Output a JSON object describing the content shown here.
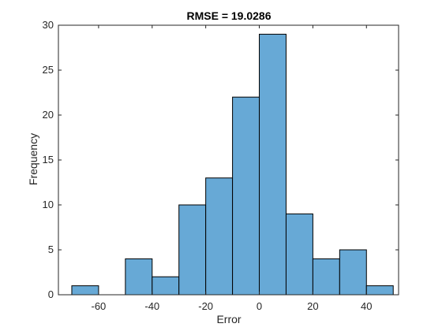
{
  "chart_data": {
    "type": "bar",
    "title": "RMSE = 19.0286",
    "xlabel": "Error",
    "ylabel": "Frequency",
    "xlim": [
      -75,
      52
    ],
    "ylim": [
      0,
      30
    ],
    "xticks": [
      -60,
      -40,
      -20,
      0,
      20,
      40
    ],
    "yticks": [
      0,
      5,
      10,
      15,
      20,
      25,
      30
    ],
    "bin_edges": [
      -70,
      -60,
      -50,
      -40,
      -30,
      -20,
      -10,
      0,
      10,
      20,
      30,
      40,
      50
    ],
    "counts": [
      1,
      0,
      4,
      2,
      10,
      13,
      22,
      29,
      9,
      4,
      5,
      1
    ],
    "bar_color": "#67a9d6",
    "edge_color": "#000000",
    "grid": false,
    "box": true
  }
}
